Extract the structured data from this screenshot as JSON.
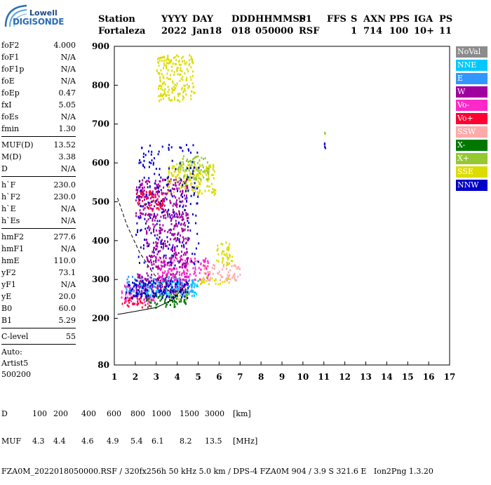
{
  "logo": {
    "line1": "Lowell",
    "line2": "DIGISONDE"
  },
  "header": {
    "row1": [
      "Station",
      "YYYY",
      "DAY",
      "DDD",
      "HHMMSS",
      "P1",
      "FFS",
      "S",
      "AXN",
      "PPS",
      "IGA",
      "PS"
    ],
    "row2": [
      "Fortaleza",
      "2022",
      "Jan18",
      "018",
      "050000",
      "RSF",
      "",
      "1",
      "714",
      "100",
      "10+",
      "11"
    ]
  },
  "params_group1": [
    {
      "name": "foF2",
      "value": "4.000"
    },
    {
      "name": "foF1",
      "value": "N/A"
    },
    {
      "name": "foF1p",
      "value": "N/A"
    },
    {
      "name": "foE",
      "value": "N/A"
    },
    {
      "name": "foEp",
      "value": "0.47"
    },
    {
      "name": "fxI",
      "value": "5.05"
    },
    {
      "name": "foEs",
      "value": "N/A"
    },
    {
      "name": "fmin",
      "value": "1.30"
    }
  ],
  "params_group2": [
    {
      "name": "MUF(D)",
      "value": "13.52"
    },
    {
      "name": "M(D)",
      "value": "3.38"
    },
    {
      "name": "D",
      "value": "N/A"
    }
  ],
  "params_group3": [
    {
      "name": "h`F",
      "value": "230.0"
    },
    {
      "name": "h`F2",
      "value": "230.0"
    },
    {
      "name": "h`E",
      "value": "N/A"
    },
    {
      "name": "h`Es",
      "value": "N/A"
    }
  ],
  "params_group4": [
    {
      "name": "hmF2",
      "value": "277.6"
    },
    {
      "name": "hmF1",
      "value": "N/A"
    },
    {
      "name": "hmE",
      "value": "110.0"
    },
    {
      "name": "yF2",
      "value": "73.1"
    },
    {
      "name": "yF1",
      "value": "N/A"
    },
    {
      "name": "yE",
      "value": "20.0"
    },
    {
      "name": "B0",
      "value": "60.0"
    },
    {
      "name": "B1",
      "value": "5.29"
    }
  ],
  "params_group5": [
    {
      "name": "C-level",
      "value": "55"
    }
  ],
  "auto": {
    "line1": "Auto:",
    "line2": "Artist5",
    "line3": "500200"
  },
  "legend": [
    {
      "label": "NoVal",
      "color": "#8c8c8c"
    },
    {
      "label": "NNE",
      "color": "#00c8ff"
    },
    {
      "label": "E",
      "color": "#3296ff"
    },
    {
      "label": "W",
      "color": "#a000a0"
    },
    {
      "label": "Vo-",
      "color": "#ff28c8"
    },
    {
      "label": "Vo+",
      "color": "#ff0032"
    },
    {
      "label": "SSW",
      "color": "#ffaaaa"
    },
    {
      "label": "X-",
      "color": "#007800"
    },
    {
      "label": "X+",
      "color": "#96c832"
    },
    {
      "label": "SSE",
      "color": "#dcdc00"
    },
    {
      "label": "NNW",
      "color": "#0000c8"
    }
  ],
  "footer": {
    "d_label": "D",
    "d_values": [
      "100",
      "200",
      "400",
      "600",
      "800",
      "1000",
      "1500",
      "3000"
    ],
    "d_unit": "[km]",
    "muf_label": "MUF",
    "muf_values": [
      "4.3",
      "4.4",
      "4.6",
      "4.9",
      "5.4",
      "6.1",
      "8.2",
      "13.5"
    ],
    "muf_unit": "[MHz]",
    "info": "FZA0M_2022018050000.RSF / 320fx256h 50 kHz 5.0 km / DPS-4 FZA0M 904 / 3.9 S 321.6 E   Ion2Png 1.3.20"
  },
  "chart_data": {
    "type": "scatter",
    "title": "",
    "xlabel": "",
    "ylabel": "",
    "xlim": [
      1,
      17
    ],
    "ylim": [
      80,
      900
    ],
    "x_ticks": [
      "1",
      "2",
      "3",
      "4",
      "5",
      "6",
      "7",
      "8",
      "9",
      "10",
      "11",
      "12",
      "13",
      "14",
      "15",
      "16",
      "17"
    ],
    "y_ticks": [
      "80",
      "200",
      "300",
      "400",
      "500",
      "600",
      "700",
      "800",
      "900"
    ],
    "grid": false,
    "legend_position": "right",
    "clusters": [
      {
        "series": "Vo-",
        "x": [
          1.3,
          3.2
        ],
        "y": [
          240,
          290
        ]
      },
      {
        "series": "Vo+",
        "x": [
          1.3,
          2.6
        ],
        "y": [
          230,
          255
        ]
      },
      {
        "series": "E",
        "x": [
          1.5,
          4.8
        ],
        "y": [
          265,
          310
        ]
      },
      {
        "series": "NNE",
        "x": [
          2.0,
          5.0
        ],
        "y": [
          260,
          300
        ]
      },
      {
        "series": "W",
        "x": [
          2.0,
          4.5
        ],
        "y": [
          270,
          320
        ]
      },
      {
        "series": "X-",
        "x": [
          2.5,
          4.5
        ],
        "y": [
          230,
          265
        ]
      },
      {
        "series": "X+",
        "x": [
          3.5,
          4.5
        ],
        "y": [
          250,
          275
        ]
      },
      {
        "series": "SSE",
        "x": [
          5.0,
          6.5
        ],
        "y": [
          290,
          310
        ]
      },
      {
        "series": "SSW",
        "x": [
          5.2,
          7.0
        ],
        "y": [
          300,
          340
        ]
      },
      {
        "series": "SSE",
        "x": [
          5.8,
          6.6
        ],
        "y": [
          340,
          400
        ]
      },
      {
        "series": "NNW",
        "x": [
          1.5,
          4.5
        ],
        "y": [
          255,
          300
        ]
      },
      {
        "series": "Vo-",
        "x": [
          3.0,
          5.5
        ],
        "y": [
          300,
          360
        ]
      },
      {
        "series": "W",
        "x": [
          2.0,
          4.5
        ],
        "y": [
          460,
          560
        ]
      },
      {
        "series": "Vo+",
        "x": [
          2.0,
          3.3
        ],
        "y": [
          480,
          530
        ]
      },
      {
        "series": "SSE",
        "x": [
          3.5,
          5.8
        ],
        "y": [
          520,
          600
        ]
      },
      {
        "series": "X+",
        "x": [
          4.0,
          5.5
        ],
        "y": [
          560,
          620
        ]
      },
      {
        "series": "SSE",
        "x": [
          3.0,
          4.8
        ],
        "y": [
          760,
          880
        ]
      },
      {
        "series": "NNW",
        "x": [
          2.0,
          5.0
        ],
        "y": [
          330,
          650
        ]
      },
      {
        "series": "W",
        "x": [
          2.5,
          4.5
        ],
        "y": [
          330,
          470
        ]
      },
      {
        "series": "NNW",
        "x": [
          11.0,
          11.05
        ],
        "y": [
          640,
          660
        ]
      },
      {
        "series": "X+",
        "x": [
          11.0,
          11.05
        ],
        "y": [
          675,
          685
        ]
      }
    ],
    "curves": [
      {
        "name": "dashed",
        "x": [
          1.15,
          1.6,
          2.2,
          2.8,
          3.4,
          4.0
        ],
        "y": [
          510,
          440,
          370,
          320,
          280,
          255
        ]
      },
      {
        "name": "solid",
        "x": [
          1.15,
          2.0,
          3.0,
          3.8,
          4.3
        ],
        "y": [
          210,
          218,
          228,
          248,
          280
        ]
      }
    ]
  }
}
